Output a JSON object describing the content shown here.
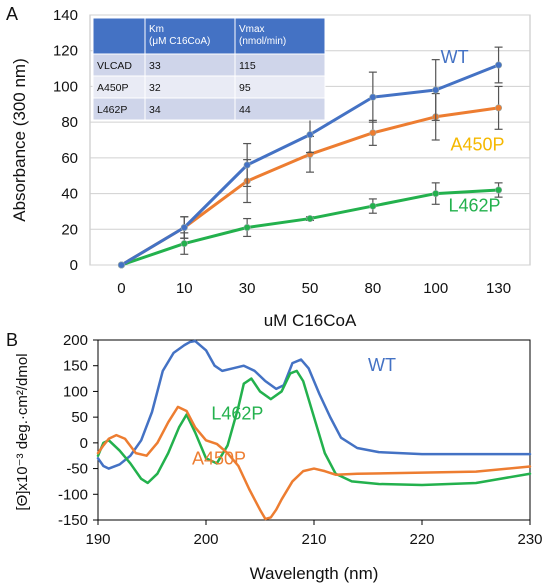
{
  "chart_data": [
    {
      "panel": "A",
      "type": "line",
      "categories": [
        "0",
        "10",
        "30",
        "50",
        "80",
        "100",
        "130"
      ],
      "xlabel": "uM C16CoA",
      "ylabel": "Absorbance (300 nm)",
      "ylim": [
        0,
        140
      ],
      "yticks": [
        0,
        20,
        40,
        60,
        80,
        100,
        120,
        140
      ],
      "grid": "horizontal",
      "series": [
        {
          "name": "WT",
          "color": "#4472C4",
          "values": [
            0,
            21,
            56,
            73,
            94,
            98,
            112
          ],
          "errors": [
            0,
            6,
            12,
            10,
            14,
            17,
            10
          ]
        },
        {
          "name": "A450P",
          "color": "#ED7D31",
          "label_color": "#F5B800",
          "values": [
            0,
            21,
            47,
            62,
            74,
            83,
            88
          ],
          "errors": [
            0,
            6,
            12,
            10,
            7,
            13,
            12
          ]
        },
        {
          "name": "L462P",
          "color": "#23B14D",
          "values": [
            0,
            12,
            21,
            26,
            33,
            40,
            42
          ],
          "errors": [
            0,
            6,
            5,
            1,
            4,
            6,
            4
          ]
        }
      ],
      "table": {
        "header": [
          "",
          "Km\n(μM C16CoA)",
          "Vmax\n(nmol/min)"
        ],
        "rows": [
          [
            "VLCAD",
            "33",
            "115"
          ],
          [
            "A450P",
            "32",
            "95"
          ],
          [
            "L462P",
            "34",
            "44"
          ]
        ]
      }
    },
    {
      "panel": "B",
      "type": "line",
      "xlabel": "Wavelength (nm)",
      "ylabel": "[Θ]x10⁻³ deg.·cm²/dmol",
      "xlim": [
        190,
        230
      ],
      "ylim": [
        -150,
        200
      ],
      "xticks": [
        190,
        200,
        210,
        220,
        230
      ],
      "yticks": [
        -150,
        -100,
        -50,
        0,
        50,
        100,
        150,
        200
      ],
      "grid": "none",
      "series": [
        {
          "name": "WT",
          "color": "#4472C4",
          "points": [
            [
              190,
              -30
            ],
            [
              190.5,
              -45
            ],
            [
              191,
              -50
            ],
            [
              192,
              -42
            ],
            [
              193,
              -25
            ],
            [
              193.5,
              -10
            ],
            [
              194,
              5
            ],
            [
              195,
              60
            ],
            [
              196,
              140
            ],
            [
              197,
              175
            ],
            [
              198,
              190
            ],
            [
              198.5,
              196
            ],
            [
              199,
              198
            ],
            [
              200,
              180
            ],
            [
              200.8,
              150
            ],
            [
              201.5,
              140
            ],
            [
              202.5,
              145
            ],
            [
              203.5,
              150
            ],
            [
              204.5,
              140
            ],
            [
              205.5,
              120
            ],
            [
              206.5,
              105
            ],
            [
              207.2,
              112
            ],
            [
              208,
              155
            ],
            [
              208.8,
              162
            ],
            [
              209.5,
              145
            ],
            [
              210.5,
              95
            ],
            [
              211.5,
              50
            ],
            [
              212.5,
              10
            ],
            [
              214,
              -10
            ],
            [
              216,
              -18
            ],
            [
              220,
              -22
            ],
            [
              225,
              -22
            ],
            [
              230,
              -22
            ]
          ]
        },
        {
          "name": "L462P",
          "color": "#23B14D",
          "points": [
            [
              190,
              -25
            ],
            [
              190.5,
              0
            ],
            [
              191,
              5
            ],
            [
              192,
              -15
            ],
            [
              193,
              -40
            ],
            [
              194,
              -70
            ],
            [
              194.6,
              -78
            ],
            [
              195.5,
              -60
            ],
            [
              196.5,
              -20
            ],
            [
              197.5,
              30
            ],
            [
              198.2,
              55
            ],
            [
              199,
              20
            ],
            [
              200,
              -30
            ],
            [
              201,
              -40
            ],
            [
              202,
              -5
            ],
            [
              203,
              70
            ],
            [
              203.5,
              115
            ],
            [
              204.2,
              125
            ],
            [
              205,
              100
            ],
            [
              206,
              85
            ],
            [
              207,
              100
            ],
            [
              207.8,
              135
            ],
            [
              208.4,
              140
            ],
            [
              209,
              120
            ],
            [
              210,
              50
            ],
            [
              211,
              -20
            ],
            [
              212,
              -60
            ],
            [
              213.5,
              -75
            ],
            [
              216,
              -80
            ],
            [
              220,
              -82
            ],
            [
              225,
              -78
            ],
            [
              230,
              -60
            ]
          ]
        },
        {
          "name": "A450P",
          "color": "#ED7D31",
          "points": [
            [
              190,
              -20
            ],
            [
              190.5,
              -5
            ],
            [
              191,
              8
            ],
            [
              191.7,
              15
            ],
            [
              192.5,
              8
            ],
            [
              193.5,
              -20
            ],
            [
              194.5,
              -25
            ],
            [
              195.5,
              0
            ],
            [
              196.5,
              40
            ],
            [
              197.4,
              70
            ],
            [
              198.2,
              62
            ],
            [
              199,
              30
            ],
            [
              200,
              5
            ],
            [
              201,
              -2
            ],
            [
              202,
              -20
            ],
            [
              203,
              -45
            ],
            [
              204,
              -90
            ],
            [
              205,
              -130
            ],
            [
              205.5,
              -148
            ],
            [
              206,
              -145
            ],
            [
              206.5,
              -130
            ],
            [
              207,
              -110
            ],
            [
              208,
              -75
            ],
            [
              209,
              -55
            ],
            [
              210,
              -50
            ],
            [
              211,
              -55
            ],
            [
              212,
              -62
            ],
            [
              214,
              -60
            ],
            [
              220,
              -58
            ],
            [
              225,
              -56
            ],
            [
              230,
              -46
            ]
          ]
        }
      ]
    }
  ]
}
